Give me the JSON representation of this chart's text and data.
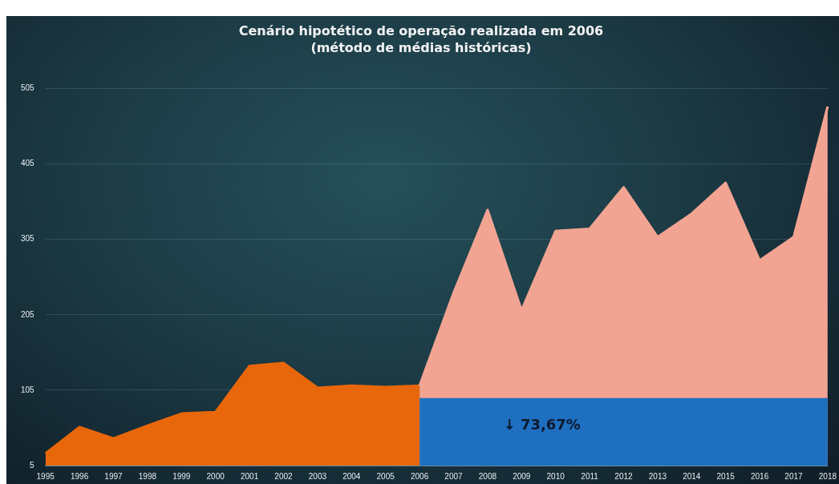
{
  "chart_data": {
    "type": "area",
    "title": "Cenário hipotético de operação realizada em 2006",
    "subtitle": "(método de médias históricas)",
    "categories": [
      "1995",
      "1996",
      "1997",
      "1998",
      "1999",
      "2000",
      "2001",
      "2002",
      "2003",
      "2004",
      "2005",
      "2006",
      "2007",
      "2008",
      "2009",
      "2010",
      "2011",
      "2012",
      "2013",
      "2014",
      "2015",
      "2016",
      "2017",
      "2018"
    ],
    "series": [
      {
        "color": "#e8670a",
        "values": [
          21,
          56,
          41,
          58,
          74,
          76,
          137,
          141,
          108,
          111,
          109,
          111,
          null,
          null,
          null,
          null,
          null,
          null,
          null,
          null,
          null,
          null,
          null,
          null
        ]
      },
      {
        "color": "#f2a493",
        "values": [
          null,
          null,
          null,
          null,
          null,
          null,
          null,
          null,
          null,
          null,
          null,
          111,
          234,
          344,
          211,
          316,
          319,
          374,
          308,
          339,
          380,
          277,
          308,
          481
        ]
      },
      {
        "color": "#1f6fc0",
        "values": [
          null,
          null,
          null,
          null,
          null,
          null,
          null,
          null,
          null,
          null,
          null,
          93,
          93,
          93,
          93,
          93,
          93,
          93,
          93,
          93,
          93,
          93,
          93,
          93
        ]
      }
    ],
    "ylim": [
      5,
      505
    ],
    "yticks": [
      5,
      105,
      205,
      305,
      405,
      505
    ],
    "grid": "y",
    "legend": false,
    "annotations": [
      "↓ 73,67%"
    ]
  }
}
